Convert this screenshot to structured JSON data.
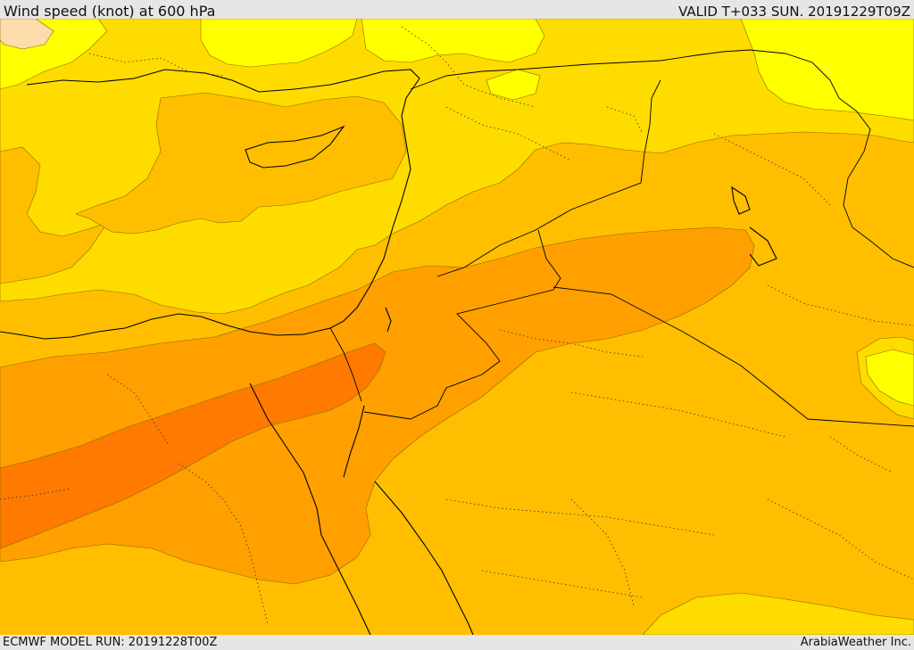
{
  "header": {
    "title": "Wind speed (knot) at 600 hPa",
    "valid": "VALID T+033 SUN. 20191229T09Z"
  },
  "footer": {
    "model_run": "ECMWF MODEL RUN: 20191228T00Z",
    "credit": "ArabiaWeather Inc."
  },
  "map": {
    "variable": "wind speed",
    "units": "knot",
    "level": "600 hPa",
    "region": "Eastern Mediterranean / Middle East",
    "colors": {
      "band_1_light": "#ffff00",
      "band_2": "#ffdc00",
      "band_3": "#ffbf00",
      "band_4": "#ffa000",
      "band_5_strongest": "#ff7a00",
      "calm_patch": "#fcdcaa",
      "coastline": "#000000",
      "border": "#000000"
    }
  }
}
